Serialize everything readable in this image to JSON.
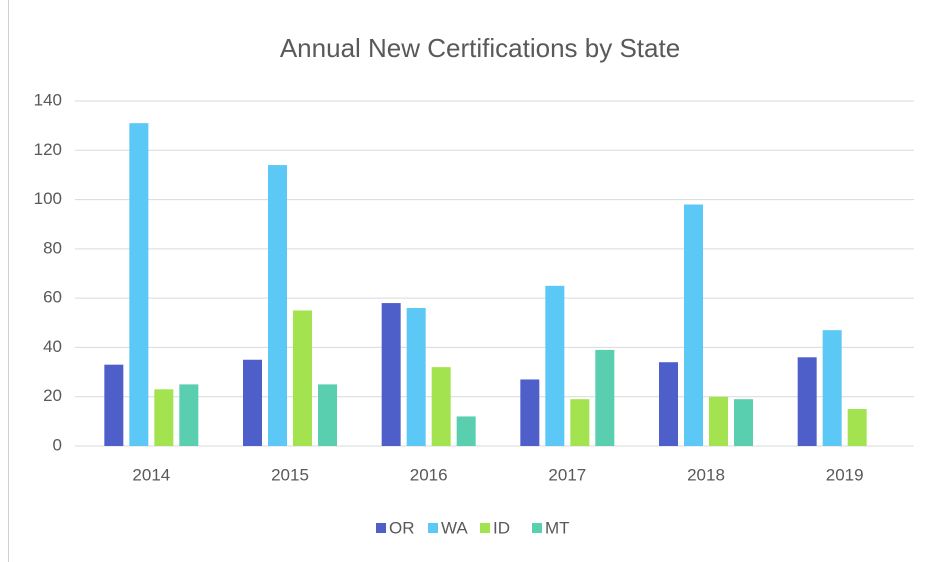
{
  "chart_data": {
    "type": "bar",
    "title": "Annual New Certifications by State",
    "categories": [
      "2014",
      "2015",
      "2016",
      "2017",
      "2018",
      "2019"
    ],
    "series": [
      {
        "name": "OR",
        "color": "#4f5fc9",
        "values": [
          33,
          35,
          58,
          27,
          34,
          36
        ]
      },
      {
        "name": "WA",
        "color": "#5bc8f5",
        "values": [
          131,
          114,
          56,
          65,
          98,
          47
        ]
      },
      {
        "name": "ID",
        "color": "#a3e34f",
        "values": [
          23,
          55,
          32,
          19,
          20,
          15
        ]
      },
      {
        "name": "MT",
        "color": "#5acfb0",
        "values": [
          25,
          25,
          12,
          39,
          19,
          null
        ]
      }
    ],
    "ylim": [
      0,
      140
    ],
    "yticks": [
      0,
      20,
      40,
      60,
      80,
      100,
      120,
      140
    ],
    "grid": true,
    "legend": "bottom"
  }
}
